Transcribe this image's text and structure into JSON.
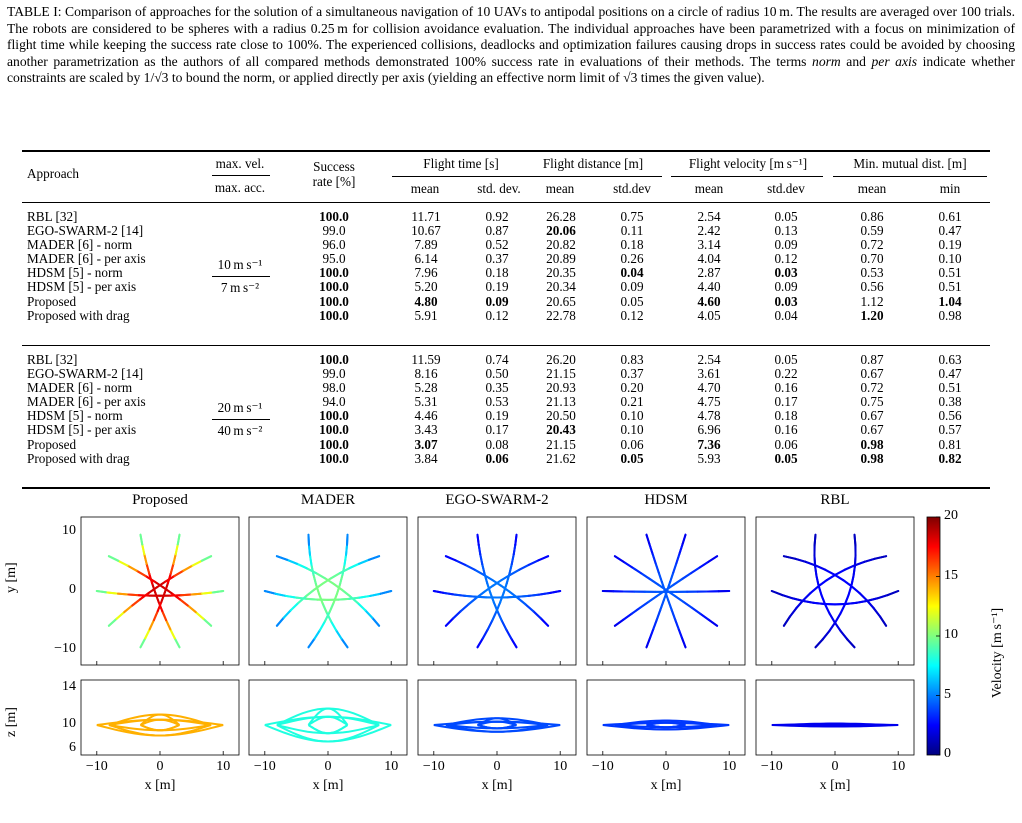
{
  "caption": {
    "label": "TABLE I:",
    "text_before_norm": " Comparison of approaches for the solution of a simultaneous navigation of 10 UAVs to antipodal positions on a circle of radius 10 m. The results are averaged over 100 trials. The robots are considered to be spheres with a radius 0.25 m for collision avoidance evaluation. The individual approaches have been parametrized with a focus on minimization of flight time while keeping the success rate close to 100%. The experienced collisions, deadlocks and optimization failures causing drops in success rates could be avoided by choosing another parametrization as the authors of all compared methods demonstrated 100% success rate in evaluations of their methods. The terms ",
    "term_norm": "norm",
    "text_and": " and ",
    "term_per_axis": "per axis",
    "text_after": " indicate whether constraints are scaled by 1/√3 to bound the norm, or applied directly per axis (yielding an effective norm limit of √3 times the given value)."
  },
  "table": {
    "headers": {
      "approach": "Approach",
      "max_vel": "max. vel.",
      "max_acc": "max. acc.",
      "success_1": "Success",
      "success_2": "rate [%]",
      "flight_time": "Flight time [s]",
      "flight_distance": "Flight distance [m]",
      "flight_velocity": "Flight velocity [m s⁻¹]",
      "min_dist": "Min. mutual dist. [m]",
      "mean": "mean",
      "std_dev": "std. dev.",
      "stddev": "std.dev",
      "min": "min"
    },
    "approaches": [
      "RBL [32]",
      "EGO-SWARM-2 [14]",
      "MADER [6] - norm",
      "MADER [6] - per axis",
      "HDSM [5] - norm",
      "HDSM [5] - per axis",
      "Proposed",
      "Proposed with drag"
    ],
    "groups": [
      {
        "vel": "10 m s⁻¹",
        "acc": "7 m s⁻²",
        "success": [
          "100.0",
          "99.0",
          "96.0",
          "95.0",
          "100.0",
          "100.0",
          "100.0",
          "100.0"
        ],
        "ft_mean": [
          "11.71",
          "10.67",
          "7.89",
          "6.14",
          "7.96",
          "5.20",
          "4.80",
          "5.91"
        ],
        "ft_std": [
          "0.92",
          "0.87",
          "0.52",
          "0.37",
          "0.18",
          "0.19",
          "0.09",
          "0.12"
        ],
        "fd_mean": [
          "26.28",
          "20.06",
          "20.82",
          "20.89",
          "20.35",
          "20.34",
          "20.65",
          "22.78"
        ],
        "fd_std": [
          "0.75",
          "0.11",
          "0.18",
          "0.26",
          "0.04",
          "0.09",
          "0.05",
          "0.12"
        ],
        "fv_mean": [
          "2.54",
          "2.42",
          "3.14",
          "4.04",
          "2.87",
          "4.40",
          "4.60",
          "4.05"
        ],
        "fv_std": [
          "0.05",
          "0.13",
          "0.09",
          "0.12",
          "0.03",
          "0.09",
          "0.03",
          "0.04"
        ],
        "md_mean": [
          "0.86",
          "0.59",
          "0.72",
          "0.70",
          "0.53",
          "0.56",
          "1.12",
          "1.20"
        ],
        "md_min": [
          "0.61",
          "0.47",
          "0.19",
          "0.10",
          "0.51",
          "0.51",
          "1.04",
          "0.98"
        ],
        "bold": {
          "success": [
            0,
            4,
            5,
            6,
            7
          ],
          "ft_mean": [
            6
          ],
          "ft_std": [
            6
          ],
          "fd_mean": [
            1
          ],
          "fd_std": [
            4
          ],
          "fv_mean": [
            6
          ],
          "fv_std": [
            4,
            6
          ],
          "md_mean": [
            7
          ],
          "md_min": [
            6
          ]
        }
      },
      {
        "vel": "20 m s⁻¹",
        "acc": "40 m s⁻²",
        "success": [
          "100.0",
          "99.0",
          "98.0",
          "94.0",
          "100.0",
          "100.0",
          "100.0",
          "100.0"
        ],
        "ft_mean": [
          "11.59",
          "8.16",
          "5.28",
          "5.31",
          "4.46",
          "3.43",
          "3.07",
          "3.84"
        ],
        "ft_std": [
          "0.74",
          "0.50",
          "0.35",
          "0.53",
          "0.19",
          "0.17",
          "0.08",
          "0.06"
        ],
        "fd_mean": [
          "26.20",
          "21.15",
          "20.93",
          "21.13",
          "20.50",
          "20.43",
          "21.15",
          "21.62"
        ],
        "fd_std": [
          "0.83",
          "0.37",
          "0.20",
          "0.21",
          "0.10",
          "0.10",
          "0.06",
          "0.05"
        ],
        "fv_mean": [
          "2.54",
          "3.61",
          "4.70",
          "4.75",
          "4.78",
          "6.96",
          "7.36",
          "5.93"
        ],
        "fv_std": [
          "0.05",
          "0.22",
          "0.16",
          "0.17",
          "0.18",
          "0.16",
          "0.06",
          "0.05"
        ],
        "md_mean": [
          "0.87",
          "0.67",
          "0.72",
          "0.75",
          "0.67",
          "0.67",
          "0.98",
          "0.98"
        ],
        "md_min": [
          "0.63",
          "0.47",
          "0.51",
          "0.38",
          "0.56",
          "0.57",
          "0.81",
          "0.82"
        ],
        "bold": {
          "success": [
            0,
            4,
            5,
            6,
            7
          ],
          "ft_mean": [
            6
          ],
          "ft_std": [
            7
          ],
          "fd_mean": [
            5
          ],
          "fd_std": [
            7
          ],
          "fv_mean": [
            6
          ],
          "fv_std": [
            7
          ],
          "md_mean": [
            6,
            7
          ],
          "md_min": [
            7
          ]
        }
      }
    ]
  },
  "figure": {
    "panels": [
      "Proposed",
      "MADER",
      "EGO-SWARM-2",
      "HDSM",
      "RBL"
    ],
    "ylabel_top": "y [m]",
    "ylabel_bottom": "z [m]",
    "xlabel": "x [m]",
    "x_ticks": [
      "−10",
      "0",
      "10"
    ],
    "y_ticks": [
      "10",
      "0",
      "−10"
    ],
    "z_ticks": [
      "14",
      "10",
      "6"
    ],
    "colorbar": {
      "label": "Velocity [m s⁻¹]",
      "ticks": [
        "20",
        "15",
        "10",
        "5",
        "0"
      ],
      "range": [
        0,
        20
      ],
      "colormap": "jet"
    },
    "panel_colors": [
      "#e8401c",
      "#2ec9d8",
      "#2d6bf0",
      "#2a56ea",
      "#1f2fd0"
    ],
    "panel_speed_spread": [
      0.6,
      0.35,
      0.35,
      0.2,
      0.15
    ]
  }
}
